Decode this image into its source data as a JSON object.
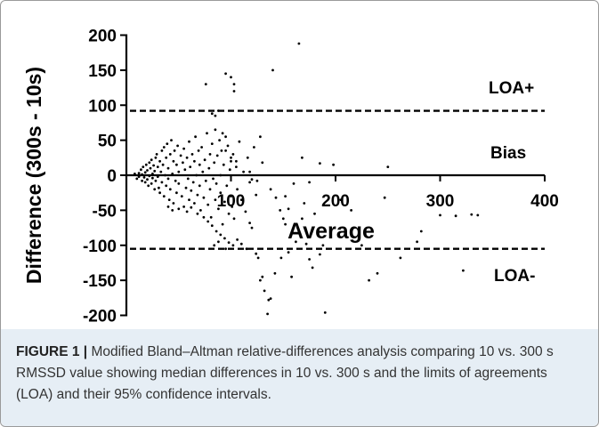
{
  "figure": {
    "caption_label": "FIGURE 1 |",
    "caption_text": "Modified Bland–Altman relative-differences analysis comparing 10 vs. 300 s RMSSD value showing median differences in 10 vs. 300 s and the limits of agreements (LOA) and their 95% confidence intervals."
  },
  "colors": {
    "frame_border": "#9a9a9a",
    "caption_bg": "#e6eef5",
    "points": "#000000",
    "lines": "#000000"
  },
  "chart_data": {
    "type": "scatter",
    "xlabel": "Average",
    "ylabel": "Difference (300s - 10s)",
    "xlim": [
      0,
      400
    ],
    "ylim": [
      -200,
      200
    ],
    "x_ticks": [
      100,
      200,
      300,
      400
    ],
    "y_ticks": [
      200,
      150,
      100,
      50,
      0,
      -50,
      -100,
      -150,
      -200
    ],
    "grid": false,
    "reference_lines": [
      {
        "label": "LOA+",
        "y": 92,
        "style": "dashed"
      },
      {
        "label": "Bias",
        "y": 0,
        "style": "solid"
      },
      {
        "label": "LOA-",
        "y": -105,
        "style": "dashed"
      }
    ],
    "points": [
      [
        8,
        2
      ],
      [
        10,
        -5
      ],
      [
        12,
        3
      ],
      [
        12,
        -2
      ],
      [
        14,
        8
      ],
      [
        15,
        -8
      ],
      [
        15,
        1
      ],
      [
        16,
        12
      ],
      [
        17,
        -3
      ],
      [
        18,
        -10
      ],
      [
        18,
        4
      ],
      [
        19,
        15
      ],
      [
        20,
        -6
      ],
      [
        20,
        7
      ],
      [
        21,
        -15
      ],
      [
        22,
        18
      ],
      [
        22,
        -1
      ],
      [
        23,
        10
      ],
      [
        24,
        -12
      ],
      [
        24,
        22
      ],
      [
        25,
        2
      ],
      [
        25,
        -4
      ],
      [
        26,
        14
      ],
      [
        27,
        -20
      ],
      [
        27,
        6
      ],
      [
        28,
        25
      ],
      [
        28,
        -8
      ],
      [
        29,
        30
      ],
      [
        30,
        -2
      ],
      [
        30,
        12
      ],
      [
        31,
        -18
      ],
      [
        32,
        20
      ],
      [
        32,
        -25
      ],
      [
        33,
        5
      ],
      [
        34,
        35
      ],
      [
        34,
        -10
      ],
      [
        35,
        15
      ],
      [
        36,
        -30
      ],
      [
        36,
        40
      ],
      [
        37,
        0
      ],
      [
        38,
        25
      ],
      [
        38,
        -15
      ],
      [
        39,
        45
      ],
      [
        40,
        -5
      ],
      [
        40,
        10
      ],
      [
        41,
        -35
      ],
      [
        42,
        30
      ],
      [
        42,
        -20
      ],
      [
        43,
        50
      ],
      [
        44,
        2
      ],
      [
        45,
        -40
      ],
      [
        45,
        20
      ],
      [
        46,
        35
      ],
      [
        47,
        -8
      ],
      [
        48,
        15
      ],
      [
        48,
        -25
      ],
      [
        49,
        42
      ],
      [
        50,
        -12
      ],
      [
        50,
        5
      ],
      [
        52,
        28
      ],
      [
        53,
        -30
      ],
      [
        54,
        18
      ],
      [
        55,
        -45
      ],
      [
        55,
        38
      ],
      [
        56,
        8
      ],
      [
        57,
        -18
      ],
      [
        58,
        25
      ],
      [
        59,
        -5
      ],
      [
        60,
        48
      ],
      [
        60,
        -35
      ],
      [
        61,
        12
      ],
      [
        62,
        -22
      ],
      [
        63,
        30
      ],
      [
        64,
        -10
      ],
      [
        65,
        20
      ],
      [
        65,
        -40
      ],
      [
        66,
        55
      ],
      [
        67,
        0
      ],
      [
        68,
        -28
      ],
      [
        69,
        35
      ],
      [
        70,
        -15
      ],
      [
        70,
        15
      ],
      [
        71,
        -50
      ],
      [
        72,
        40
      ],
      [
        73,
        5
      ],
      [
        74,
        -32
      ],
      [
        75,
        22
      ],
      [
        76,
        -8
      ],
      [
        77,
        60
      ],
      [
        78,
        -42
      ],
      [
        79,
        10
      ],
      [
        80,
        -20
      ],
      [
        80,
        30
      ],
      [
        81,
        -60
      ],
      [
        82,
        45
      ],
      [
        83,
        -5
      ],
      [
        84,
        18
      ],
      [
        85,
        -35
      ],
      [
        85,
        65
      ],
      [
        86,
        -12
      ],
      [
        87,
        28
      ],
      [
        88,
        -48
      ],
      [
        89,
        50
      ],
      [
        90,
        0
      ],
      [
        90,
        -25
      ],
      [
        91,
        35
      ],
      [
        92,
        -70
      ],
      [
        93,
        15
      ],
      [
        94,
        -38
      ],
      [
        95,
        55
      ],
      [
        96,
        -15
      ],
      [
        97,
        42
      ],
      [
        98,
        -55
      ],
      [
        99,
        8
      ],
      [
        100,
        -30
      ],
      [
        100,
        20
      ],
      [
        101,
        -45
      ],
      [
        102,
        30
      ],
      [
        103,
        -62
      ],
      [
        105,
        12
      ],
      [
        106,
        -20
      ],
      [
        108,
        48
      ],
      [
        110,
        -35
      ],
      [
        112,
        5
      ],
      [
        114,
        -52
      ],
      [
        116,
        25
      ],
      [
        118,
        -10
      ],
      [
        120,
        -75
      ],
      [
        122,
        40
      ],
      [
        124,
        -28
      ],
      [
        40,
        -45
      ],
      [
        44,
        -50
      ],
      [
        50,
        -48
      ],
      [
        58,
        -52
      ],
      [
        62,
        -46
      ],
      [
        68,
        -55
      ],
      [
        74,
        -60
      ],
      [
        78,
        -66
      ],
      [
        82,
        -72
      ],
      [
        86,
        -80
      ],
      [
        90,
        -85
      ],
      [
        94,
        -90
      ],
      [
        98,
        -96
      ],
      [
        102,
        -100
      ],
      [
        106,
        -92
      ],
      [
        88,
        -95
      ],
      [
        84,
        -100
      ],
      [
        95,
        -105
      ],
      [
        110,
        -98
      ],
      [
        115,
        -105
      ],
      [
        76,
        130
      ],
      [
        95,
        145
      ],
      [
        100,
        140
      ],
      [
        103,
        130
      ],
      [
        103,
        120
      ],
      [
        140,
        150
      ],
      [
        165,
        188
      ],
      [
        85,
        85
      ],
      [
        88,
        92
      ],
      [
        82,
        88
      ],
      [
        92,
        60
      ],
      [
        95,
        35
      ],
      [
        100,
        25
      ],
      [
        105,
        20
      ],
      [
        118,
        -68
      ],
      [
        124,
        -112
      ],
      [
        126,
        -118
      ],
      [
        128,
        -150
      ],
      [
        130,
        -145
      ],
      [
        132,
        -165
      ],
      [
        136,
        -178
      ],
      [
        138,
        -176
      ],
      [
        135,
        -198
      ],
      [
        142,
        -140
      ],
      [
        148,
        -118
      ],
      [
        150,
        -62
      ],
      [
        152,
        -30
      ],
      [
        155,
        -110
      ],
      [
        158,
        -145
      ],
      [
        162,
        -95
      ],
      [
        165,
        -82
      ],
      [
        168,
        -62
      ],
      [
        170,
        -40
      ],
      [
        172,
        -98
      ],
      [
        175,
        -120
      ],
      [
        178,
        -132
      ],
      [
        180,
        -55
      ],
      [
        185,
        -113
      ],
      [
        188,
        -100
      ],
      [
        190,
        -196
      ],
      [
        155,
        -48
      ],
      [
        168,
        25
      ],
      [
        175,
        -10
      ],
      [
        185,
        17
      ],
      [
        198,
        15
      ],
      [
        205,
        -35
      ],
      [
        215,
        -50
      ],
      [
        225,
        -100
      ],
      [
        232,
        -150
      ],
      [
        240,
        -140
      ],
      [
        247,
        -32
      ],
      [
        250,
        12
      ],
      [
        262,
        -118
      ],
      [
        278,
        -95
      ],
      [
        282,
        -80
      ],
      [
        300,
        -57
      ],
      [
        315,
        -58
      ],
      [
        322,
        -136
      ],
      [
        330,
        -56
      ],
      [
        336,
        -57
      ],
      [
        118,
        5
      ],
      [
        120,
        -6
      ],
      [
        125,
        -8
      ],
      [
        130,
        18
      ],
      [
        138,
        -20
      ],
      [
        143,
        -32
      ],
      [
        147,
        -50
      ],
      [
        152,
        -70
      ],
      [
        160,
        -12
      ],
      [
        128,
        55
      ]
    ]
  },
  "annotations": {
    "loa_plus": "LOA+",
    "bias": "Bias",
    "loa_minus": "LOA-",
    "xlabel": "Average",
    "ylabel": "Difference (300s - 10s)"
  }
}
